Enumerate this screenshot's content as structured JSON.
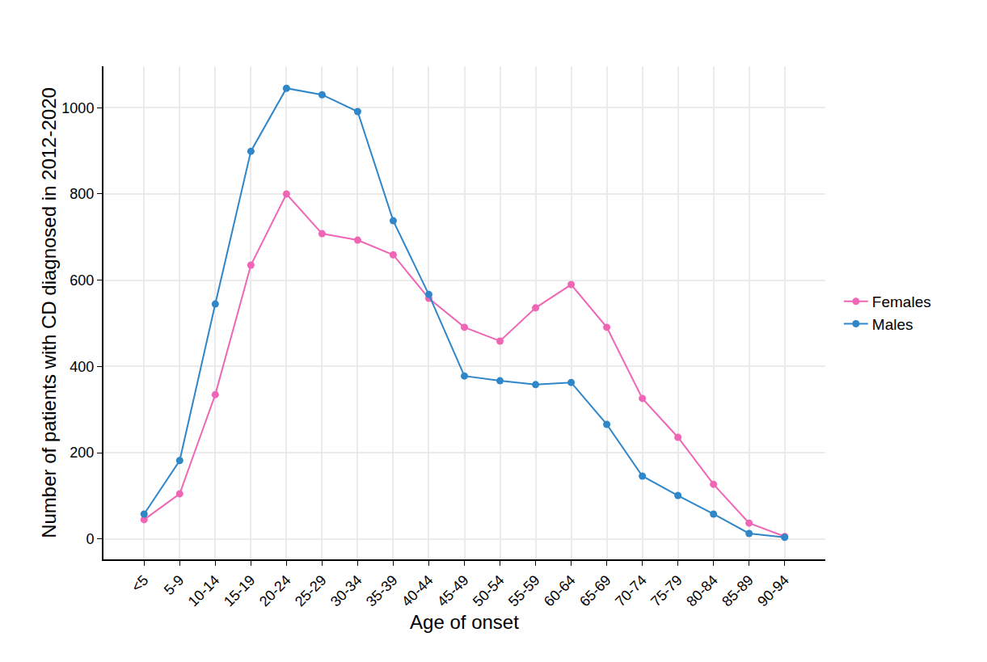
{
  "chart_data": {
    "type": "line",
    "x_label": "Age of onset",
    "y_label": "Number of patients with CD diagnosed in 2012-2020",
    "categories": [
      "<5",
      "5-9",
      "10-14",
      "15-19",
      "20-24",
      "25-29",
      "30-34",
      "35-39",
      "40-44",
      "45-49",
      "50-54",
      "55-59",
      "60-64",
      "65-69",
      "70-74",
      "75-79",
      "80-84",
      "85-89",
      "90-94"
    ],
    "series": [
      {
        "name": "Females",
        "color": "#ee66b5",
        "values": [
          45,
          105,
          335,
          635,
          800,
          708,
          693,
          659,
          558,
          491,
          459,
          536,
          590,
          491,
          326,
          236,
          127,
          37,
          6
        ]
      },
      {
        "name": "Males",
        "color": "#2f86c8",
        "values": [
          58,
          182,
          545,
          899,
          1045,
          1030,
          991,
          738,
          567,
          378,
          367,
          358,
          363,
          266,
          146,
          101,
          58,
          13,
          4
        ]
      }
    ],
    "ylim": [
      -47,
      1096
    ],
    "yticks": [
      0,
      200,
      400,
      600,
      800,
      1000
    ],
    "grid": true,
    "legend": "right",
    "marker": "circle"
  }
}
